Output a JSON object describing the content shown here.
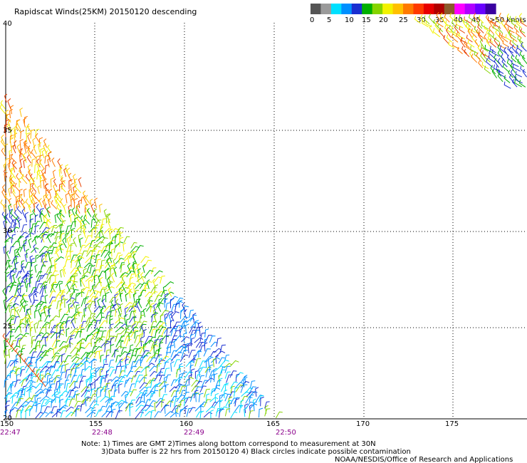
{
  "title": "Rapidscat Winds(25KM) 20150120 descending",
  "color_scale": {
    "labels": [
      "0",
      "5",
      "10",
      "15",
      "20",
      "25",
      "30",
      "35",
      "40",
      "45",
      ">50 knots"
    ],
    "colors": [
      "#555555",
      "#9a9a9a",
      "#00e0ff",
      "#0090ff",
      "#1a2fd0",
      "#00b000",
      "#86d400",
      "#f2f200",
      "#ffc000",
      "#ff7a00",
      "#ff3a00",
      "#e80000",
      "#b00000",
      "#8b5a2b",
      "#ff00ff",
      "#b000ff",
      "#6a00ff",
      "#3a00a0"
    ]
  },
  "map": {
    "lat_labels": [
      "40",
      "35",
      "30",
      "25",
      "20"
    ],
    "lon_labels": [
      "150",
      "155",
      "160",
      "165",
      "170",
      "175"
    ],
    "time_labels": [
      "22:47",
      "22:48",
      "22:49",
      "22:50"
    ]
  },
  "notes": {
    "line1": "Note: 1) Times are GMT 2)Times along bottom correspond to measurement at 30N",
    "line2": "3)Data buffer is 22 hrs from 20150120 4) Black circles indicate possible contamination",
    "line3": "NOAA/NESDIS/Office of Research and Applications"
  }
}
